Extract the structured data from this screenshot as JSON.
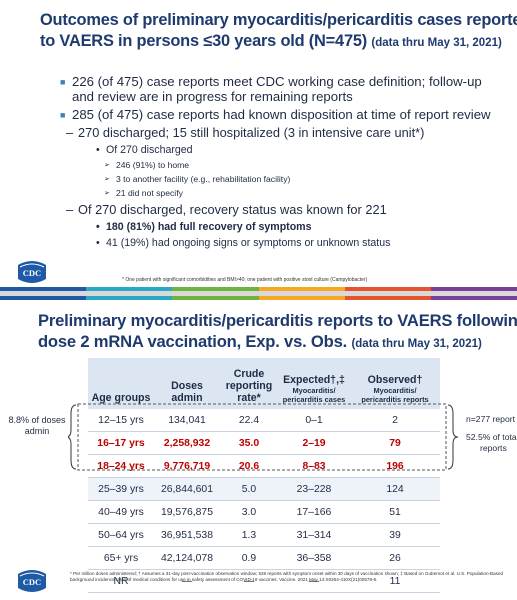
{
  "slide1": {
    "title_lines": [
      "Outcomes of preliminary myocarditis/pericarditis cases reported",
      "to VAERS in persons ≤30 years old (N=475)"
    ],
    "title_note": "(data thru May 31, 2021)",
    "bullets": [
      {
        "level": 1,
        "text": "226 (of 475) case reports meet CDC working case definition; follow-up and review are in progress for remaining reports"
      },
      {
        "level": 1,
        "text": "285 (of 475) case reports had known disposition at time of report review"
      },
      {
        "level": 2,
        "text": "270 discharged; 15 still hospitalized (3 in intensive care unit*)"
      },
      {
        "level": 3,
        "text": "Of 270 discharged"
      },
      {
        "level": 4,
        "text": "246 (91%) to home"
      },
      {
        "level": 4,
        "text": "3 to another facility (e.g., rehabilitation facility)"
      },
      {
        "level": 4,
        "text": "21 did not specify"
      },
      {
        "level": 2,
        "text": "Of 270 discharged, recovery status was known for 221"
      },
      {
        "level": 3,
        "text": "180 (81%) had full recovery of symptoms",
        "bold": true
      },
      {
        "level": 3,
        "text": "41 (19%) had ongoing signs or symptoms or unknown status"
      }
    ],
    "footnote": "* One patient with significant comorbidities and BMI>40; one patient with positive stool culture (Campylobacter)",
    "logo_text": "CDC"
  },
  "slide2": {
    "title_lines": [
      "Preliminary myocarditis/pericarditis reports to VAERS following",
      "dose 2 mRNA vaccination, Exp. vs. Obs."
    ],
    "title_note": "(data thru May 31, 2021)",
    "table": {
      "header": [
        {
          "main": "Age groups"
        },
        {
          "main": "Doses admin"
        },
        {
          "main": "Crude reporting rate*"
        },
        {
          "main": "Expected†,‡",
          "sub": "Myocarditis/ pericarditis cases"
        },
        {
          "main": "Observed†",
          "sub": "Myocarditis/ pericarditis reports"
        }
      ],
      "rows": [
        {
          "cells": [
            "12–15 yrs",
            "134,041",
            "22.4",
            "0–1",
            "2"
          ]
        },
        {
          "cells": [
            "16–17 yrs",
            "2,258,932",
            "35.0",
            "2–19",
            "79"
          ],
          "color": "#c00000"
        },
        {
          "cells": [
            "18–24 yrs",
            "9,776,719",
            "20.6",
            "8–83",
            "196"
          ],
          "color": "#c00000"
        },
        {
          "cells": [
            "25–39 yrs",
            "26,844,601",
            "5.0",
            "23–228",
            "124"
          ]
        },
        {
          "cells": [
            "40–49 yrs",
            "19,576,875",
            "3.0",
            "17–166",
            "51"
          ]
        },
        {
          "cells": [
            "50–64 yrs",
            "36,951,538",
            "1.3",
            "31–314",
            "39"
          ]
        },
        {
          "cells": [
            "65+ yrs",
            "42,124,078",
            "0.9",
            "36–358",
            "26"
          ]
        },
        {
          "cells": [
            "NR",
            "—",
            "—",
            "—",
            "11"
          ]
        }
      ]
    },
    "left_note": "8.8% of doses admin",
    "right_note": [
      "n=277 report",
      "52.5% of tota",
      "reports"
    ],
    "footnote": "* Per million doses administered; † Assumes a 31-day post-vaccination observation window; 528 reports with symptom onset within 30 days of vaccination shown; ‡ Based on Gubernot et al. U.S. Population-Based background incidence rates of medical conditions for use in safety assessment of COVID-19 vaccines. Vaccine. 2021 May 14:S0264-410X(21)00578-8.",
    "logo_text": "CDC"
  }
}
